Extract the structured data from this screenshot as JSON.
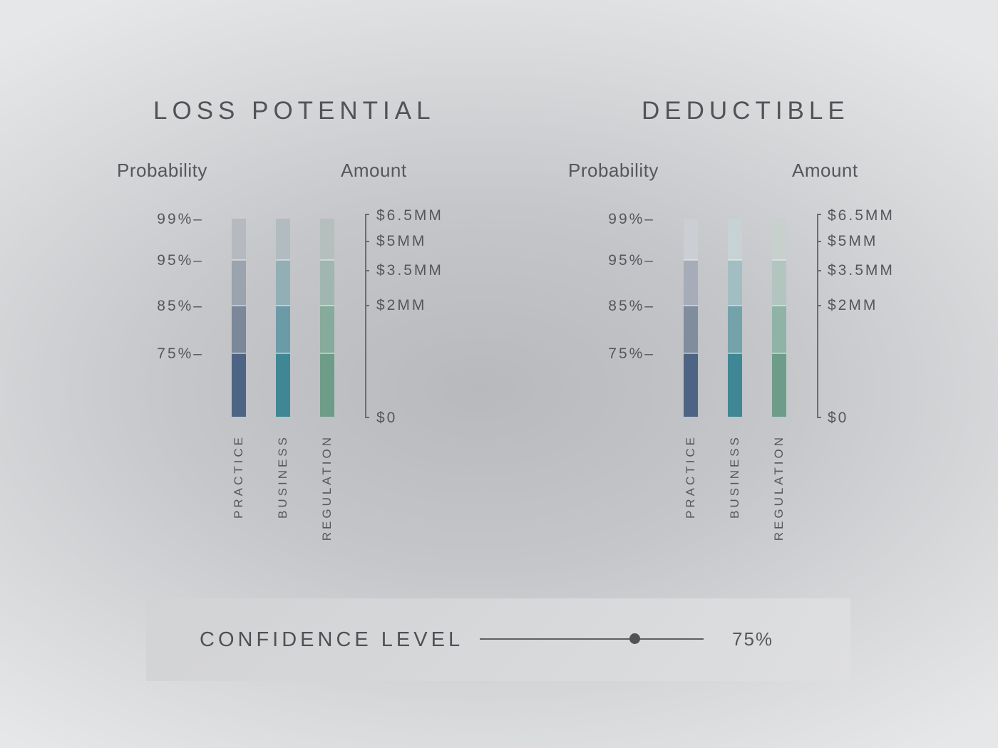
{
  "panels": [
    {
      "title": "LOSS POTENTIAL",
      "probability_header": "Probability",
      "amount_header": "Amount",
      "probability_labels": [
        "99%–",
        "95%–",
        "85%–",
        "75%–"
      ],
      "amount_labels": [
        "$6.5MM",
        "$5MM",
        "$3.5MM",
        "$2MM",
        "$0"
      ],
      "categories": [
        "PRACTICE",
        "BUSINESS",
        "REGULATION"
      ],
      "bar_colors": [
        [
          "#b6b9bf",
          "#9aa3ae",
          "#7a8899",
          "#4e6484"
        ],
        [
          "#b2bcc0",
          "#93afb6",
          "#6b9ba6",
          "#3f8795"
        ],
        [
          "#b5bfbd",
          "#a0b6b0",
          "#86aa9b",
          "#6d9c89"
        ]
      ]
    },
    {
      "title": "DEDUCTIBLE",
      "probability_header": "Probability",
      "amount_header": "Amount",
      "probability_labels": [
        "99%–",
        "95%–",
        "85%–",
        "75%–"
      ],
      "amount_labels": [
        "$6.5MM",
        "$5MM",
        "$3.5MM",
        "$2MM",
        "$0"
      ],
      "categories": [
        "PRACTICE",
        "BUSINESS",
        "REGULATION"
      ],
      "bar_colors": [
        [
          "#cbced2",
          "#a6adb8",
          "#7f8d9d",
          "#4e6484"
        ],
        [
          "#c7d2d4",
          "#a3bec2",
          "#74a2aa",
          "#3f8795"
        ],
        [
          "#c8d0ce",
          "#b2c5bf",
          "#8fb3a6",
          "#6d9c89"
        ]
      ]
    }
  ],
  "confidence": {
    "label": "CONFIDENCE LEVEL",
    "value_text": "75%",
    "slider_fraction": 0.69
  }
}
